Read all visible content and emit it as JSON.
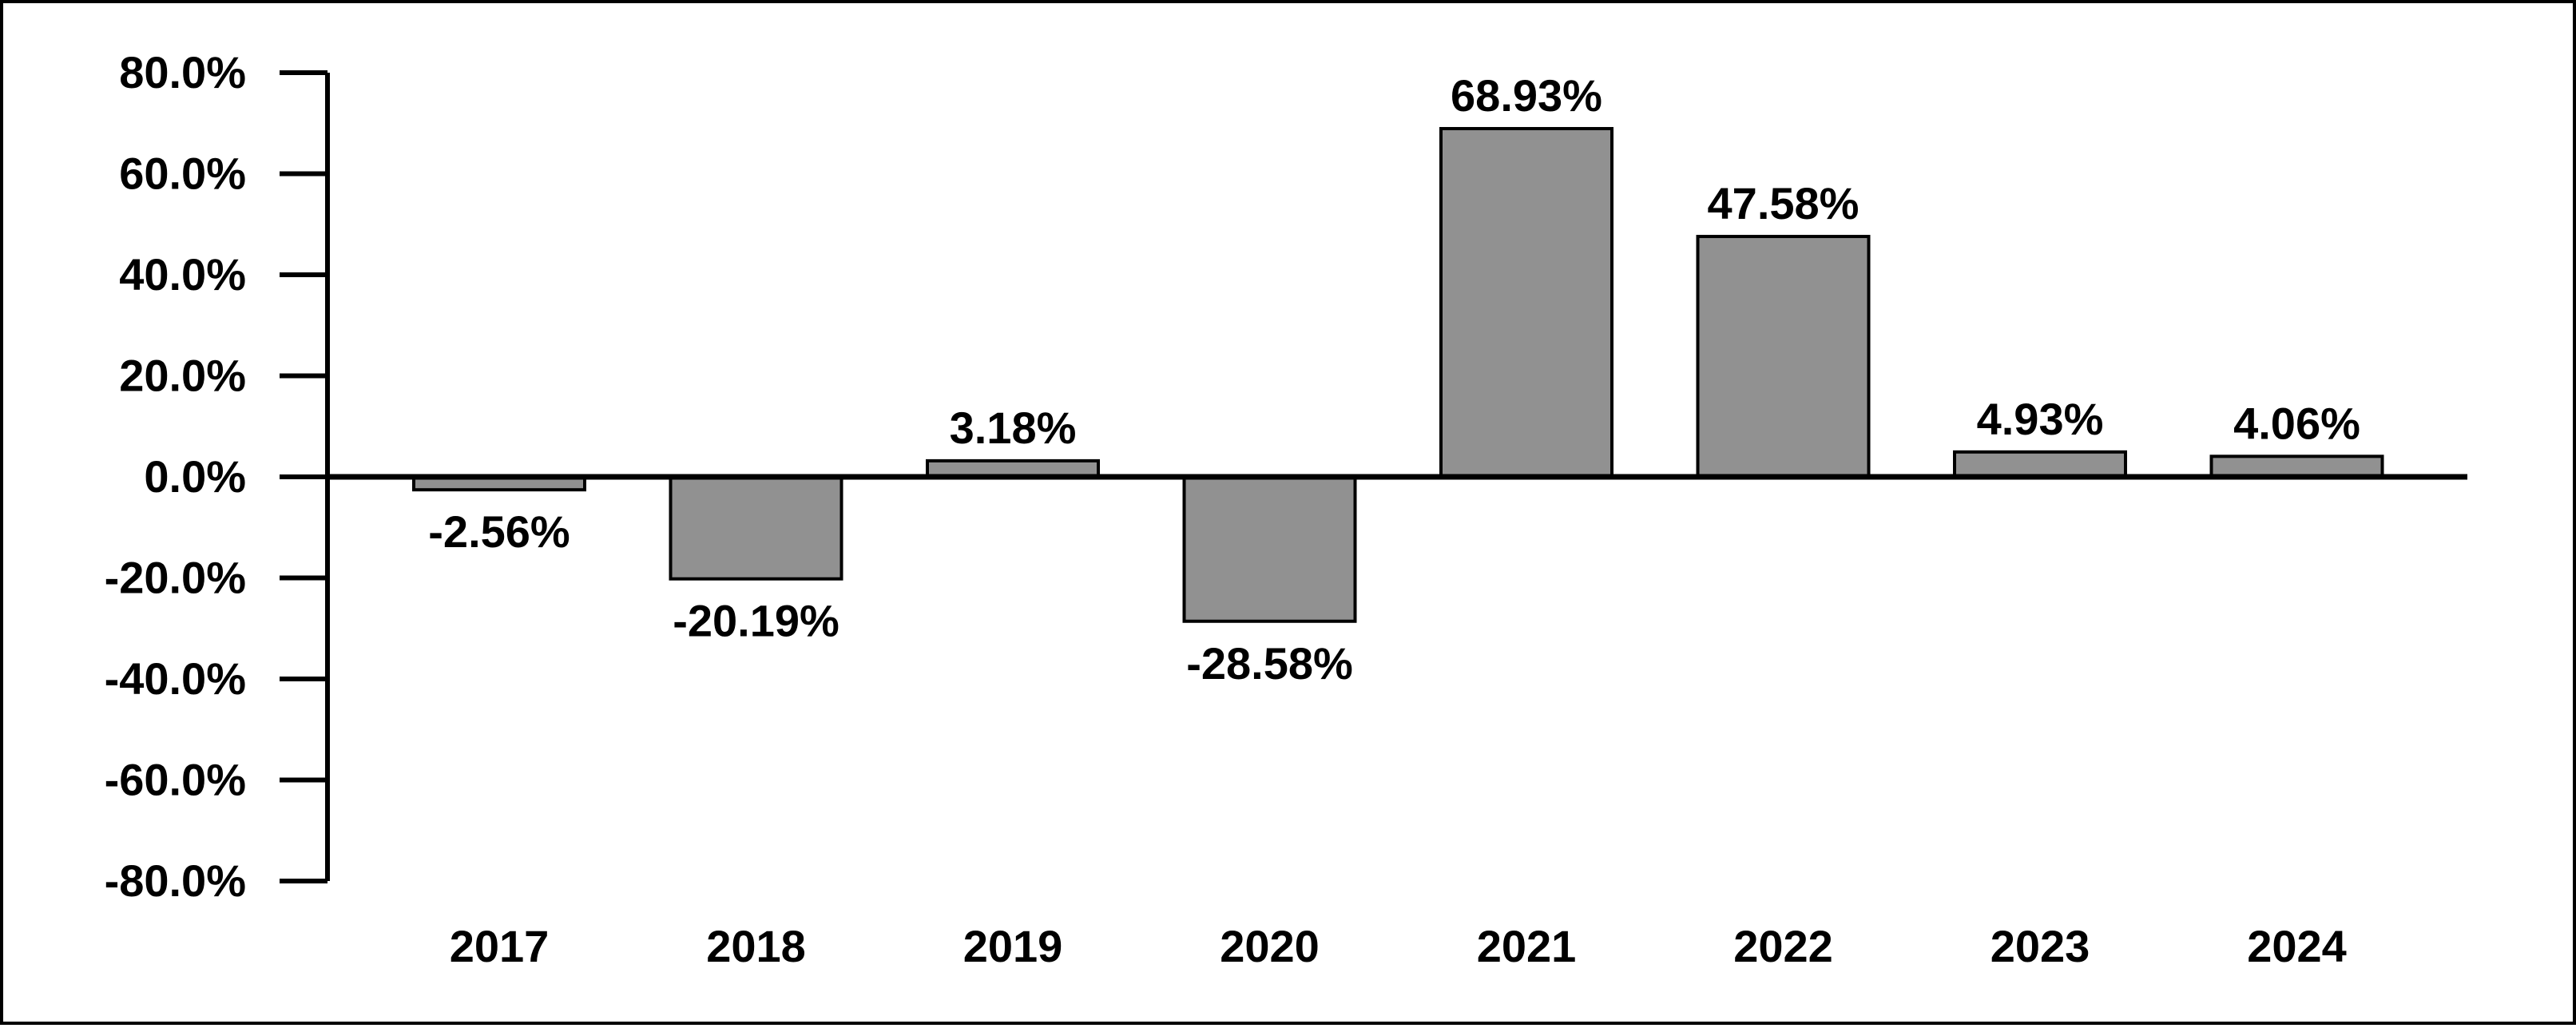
{
  "chart_data": {
    "type": "bar",
    "title": "",
    "xlabel": "",
    "ylabel": "",
    "categories": [
      "2017",
      "2018",
      "2019",
      "2020",
      "2021",
      "2022",
      "2023",
      "2024"
    ],
    "values": [
      -2.56,
      -20.19,
      3.18,
      -28.58,
      68.93,
      47.58,
      4.93,
      4.06
    ],
    "data_labels": [
      "-2.56%",
      "-20.19%",
      "3.18%",
      "-28.58%",
      "68.93%",
      "47.58%",
      "4.93%",
      "4.06%"
    ],
    "ylim": [
      -80,
      80
    ],
    "yticks": [
      80,
      60,
      40,
      20,
      0,
      -20,
      -40,
      -60,
      -80
    ],
    "ytick_labels": [
      "80.0%",
      "60.0%",
      "40.0%",
      "20.0%",
      "0.0%",
      "-20.0%",
      "-40.0%",
      "-60.0%",
      "-80.0%"
    ],
    "grid": false,
    "legend": "none",
    "bar_color": "#919191",
    "bar_edge_color": "#000000"
  }
}
